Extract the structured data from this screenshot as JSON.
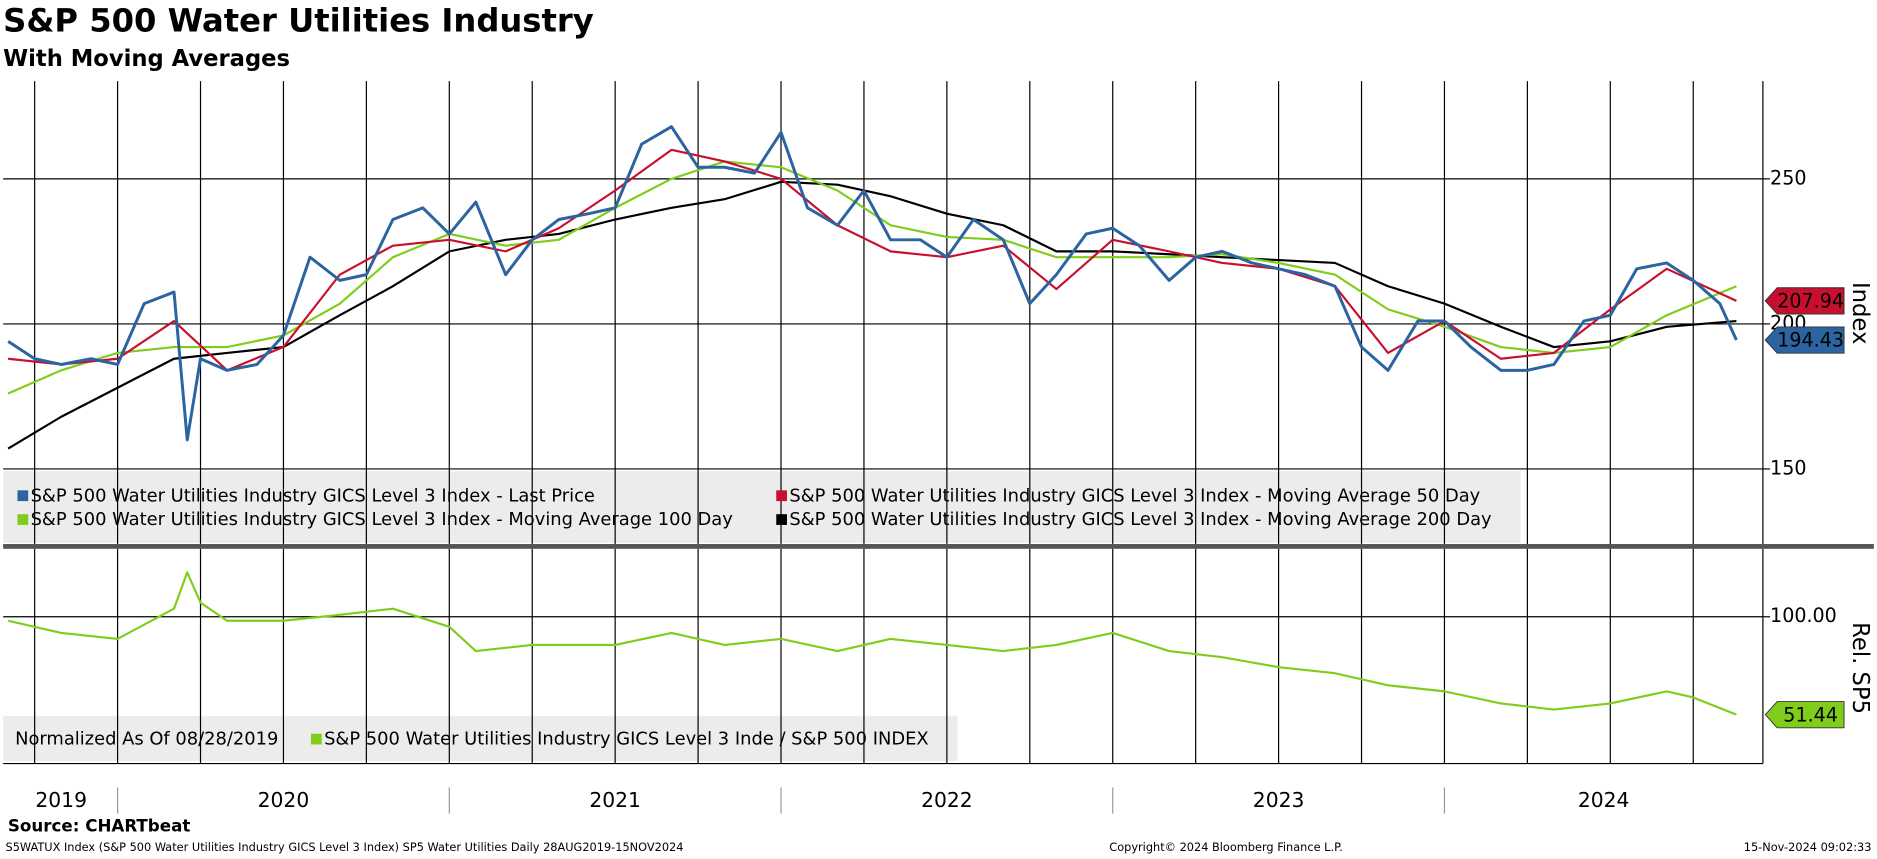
{
  "chart_data": [
    {
      "type": "line",
      "title": "S&P 500 Water Utilities Industry",
      "subtitle": "With Moving Averages",
      "ylabel": "Index",
      "xlim": [
        2019.655,
        2024.96
      ],
      "ylim": [
        123.7,
        283.7
      ],
      "yticks": [
        150,
        200,
        250
      ],
      "grid": true,
      "xgrid": [
        2019.75,
        2020,
        2020.25,
        2020.5,
        2020.75,
        2021,
        2021.25,
        2021.5,
        2021.75,
        2022,
        2022.25,
        2022.5,
        2022.75,
        2023,
        2023.25,
        2023.5,
        2023.75,
        2024,
        2024.25,
        2024.5,
        2024.75
      ],
      "series": [
        {
          "name": "S&P 500 Water Utilities Industry GICS Level 3 Index - Last Price",
          "color": "#2b64a0",
          "last_tag": true,
          "x": [
            2019.67,
            2019.75,
            2019.83,
            2019.92,
            2020.0,
            2020.08,
            2020.17,
            2020.21,
            2020.25,
            2020.33,
            2020.42,
            2020.5,
            2020.58,
            2020.67,
            2020.75,
            2020.83,
            2020.92,
            2021.0,
            2021.08,
            2021.17,
            2021.25,
            2021.33,
            2021.42,
            2021.5,
            2021.58,
            2021.67,
            2021.75,
            2021.83,
            2021.92,
            2022.0,
            2022.08,
            2022.17,
            2022.25,
            2022.33,
            2022.42,
            2022.5,
            2022.58,
            2022.67,
            2022.75,
            2022.83,
            2022.92,
            2023.0,
            2023.08,
            2023.17,
            2023.25,
            2023.33,
            2023.42,
            2023.5,
            2023.58,
            2023.67,
            2023.75,
            2023.83,
            2023.92,
            2024.0,
            2024.08,
            2024.17,
            2024.25,
            2024.33,
            2024.42,
            2024.5,
            2024.58,
            2024.67,
            2024.75,
            2024.83,
            2024.88
          ],
          "values": [
            194,
            188,
            186,
            188,
            186,
            207,
            211,
            160,
            188,
            184,
            186,
            196,
            223,
            215,
            217,
            236,
            240,
            231,
            242,
            217,
            229,
            236,
            238,
            240,
            262,
            268,
            254,
            254,
            252,
            266,
            240,
            234,
            246,
            229,
            229,
            223,
            236,
            229,
            207,
            217,
            231,
            233,
            227,
            215,
            223,
            225,
            221,
            219,
            217,
            213,
            192,
            184,
            201,
            201,
            192,
            184,
            184,
            186,
            201,
            203,
            219,
            221,
            215,
            207,
            194.43
          ]
        },
        {
          "name": "S&P 500 Water Utilities Industry GICS Level 3 Index - Moving Average 50 Day",
          "color": "#c8102e",
          "last_tag": true,
          "x": [
            2019.67,
            2019.83,
            2020.0,
            2020.17,
            2020.33,
            2020.5,
            2020.67,
            2020.83,
            2021.0,
            2021.17,
            2021.33,
            2021.5,
            2021.67,
            2021.83,
            2022.0,
            2022.17,
            2022.33,
            2022.5,
            2022.67,
            2022.83,
            2023.0,
            2023.17,
            2023.33,
            2023.5,
            2023.67,
            2023.83,
            2024.0,
            2024.17,
            2024.33,
            2024.5,
            2024.67,
            2024.88
          ],
          "values": [
            188,
            186,
            188,
            201,
            184,
            192,
            217,
            227,
            229,
            225,
            233,
            246,
            260,
            256,
            250,
            234,
            225,
            223,
            227,
            212,
            229,
            225,
            221,
            219,
            213,
            190,
            201,
            188,
            190,
            205,
            219,
            207.94
          ]
        },
        {
          "name": "S&P 500 Water Utilities Industry GICS Level 3 Index - Moving Average 100 Day",
          "color": "#7fcc1a",
          "x": [
            2019.67,
            2019.83,
            2020.0,
            2020.17,
            2020.33,
            2020.5,
            2020.67,
            2020.83,
            2021.0,
            2021.17,
            2021.33,
            2021.5,
            2021.67,
            2021.83,
            2022.0,
            2022.17,
            2022.33,
            2022.5,
            2022.67,
            2022.83,
            2023.0,
            2023.17,
            2023.33,
            2023.5,
            2023.67,
            2023.83,
            2024.0,
            2024.17,
            2024.33,
            2024.5,
            2024.67,
            2024.88
          ],
          "values": [
            176,
            184,
            190,
            192,
            192,
            196,
            207,
            223,
            231,
            227,
            229,
            240,
            250,
            256,
            254,
            246,
            234,
            230,
            229,
            223,
            223,
            223,
            224,
            221,
            217,
            205,
            199,
            192,
            190,
            192,
            203,
            213
          ]
        },
        {
          "name": "S&P 500 Water Utilities Industry GICS Level 3 Index - Moving Average 200 Day",
          "color": "#000000",
          "x": [
            2019.67,
            2019.83,
            2020.0,
            2020.17,
            2020.33,
            2020.5,
            2020.67,
            2020.83,
            2021.0,
            2021.17,
            2021.33,
            2021.5,
            2021.67,
            2021.83,
            2022.0,
            2022.17,
            2022.33,
            2022.5,
            2022.67,
            2022.83,
            2023.0,
            2023.17,
            2023.33,
            2023.5,
            2023.67,
            2023.83,
            2024.0,
            2024.17,
            2024.33,
            2024.5,
            2024.67,
            2024.88
          ],
          "values": [
            157,
            168,
            178,
            188,
            190,
            192,
            203,
            213,
            225,
            229,
            231,
            236,
            240,
            243,
            249,
            248,
            244,
            238,
            234,
            225,
            225,
            224,
            223,
            222,
            221,
            213,
            207,
            199,
            192,
            194,
            199,
            201
          ]
        }
      ]
    },
    {
      "type": "line",
      "note": "Normalized As Of 08/28/2019",
      "ylabel": "Rel. SP5",
      "xlim": [
        2019.655,
        2024.96
      ],
      "ylim": [
        27.2,
        133.7
      ],
      "yticks": [
        {
          "value": 100,
          "label": "100.00"
        }
      ],
      "grid": true,
      "xgrid": [
        2019.75,
        2020,
        2020.25,
        2020.5,
        2020.75,
        2021,
        2021.25,
        2021.5,
        2021.75,
        2022,
        2022.25,
        2022.5,
        2022.75,
        2023,
        2023.25,
        2023.5,
        2023.75,
        2024,
        2024.25,
        2024.5,
        2024.75
      ],
      "xticks": [
        {
          "value": 2019.83,
          "label": "2019"
        },
        {
          "value": 2020.5,
          "label": "2020"
        },
        {
          "value": 2021.5,
          "label": "2021"
        },
        {
          "value": 2022.5,
          "label": "2022"
        },
        {
          "value": 2023.5,
          "label": "2023"
        },
        {
          "value": 2024.48,
          "label": "2024"
        }
      ],
      "series": [
        {
          "name": "S&P 500 Water Utilities Industry GICS Level 3 Inde / S&P 500 INDEX",
          "color": "#7fcc1a",
          "last_tag": true,
          "x": [
            2019.67,
            2019.83,
            2020.0,
            2020.17,
            2020.21,
            2020.25,
            2020.33,
            2020.5,
            2020.67,
            2020.83,
            2021.0,
            2021.08,
            2021.25,
            2021.5,
            2021.67,
            2021.83,
            2022.0,
            2022.17,
            2022.33,
            2022.5,
            2022.67,
            2022.83,
            2023.0,
            2023.17,
            2023.33,
            2023.5,
            2023.67,
            2023.83,
            2024.0,
            2024.17,
            2024.33,
            2024.5,
            2024.67,
            2024.75,
            2024.88
          ],
          "values": [
            98,
            92,
            89,
            104,
            122,
            107,
            98,
            98,
            101,
            104,
            95,
            83,
            86,
            86,
            92,
            86,
            89,
            83,
            89,
            86,
            83,
            86,
            92,
            83,
            80,
            75,
            72,
            66,
            63,
            57,
            54,
            57,
            63,
            60,
            51.44
          ]
        }
      ]
    }
  ],
  "footer": {
    "source": "Source: CHARTbeat",
    "ticker": "S5WATUX Index (S&P 500 Water Utilities Industry GICS Level 3 Index) SP5 Water Utilities  Daily 28AUG2019-15NOV2024",
    "copyright": "Copyright© 2024 Bloomberg Finance L.P.",
    "timestamp": "15-Nov-2024 09:02:33"
  }
}
